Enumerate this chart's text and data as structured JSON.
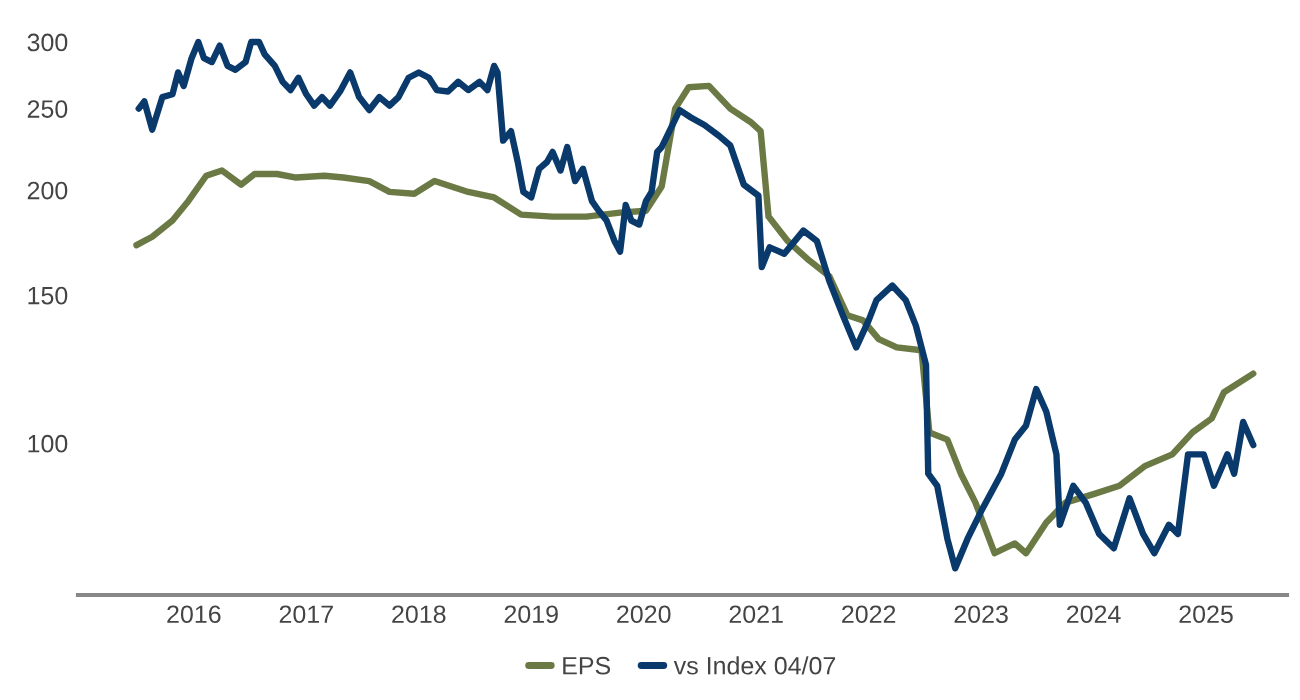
{
  "chart_data": {
    "type": "line",
    "log": true,
    "grid": false,
    "legend": "bottom",
    "xlim": [
      2014.97,
      2025.72
    ],
    "xticks": [
      {
        "value": 2016,
        "label": "2016"
      },
      {
        "value": 2017,
        "label": "2017"
      },
      {
        "value": 2018,
        "label": "2018"
      },
      {
        "value": 2019,
        "label": "2019"
      },
      {
        "value": 2020,
        "label": "2020"
      },
      {
        "value": 2021,
        "label": "2021"
      },
      {
        "value": 2022,
        "label": "2022"
      },
      {
        "value": 2023,
        "label": "2023"
      },
      {
        "value": 2024,
        "label": "2024"
      },
      {
        "value": 2025,
        "label": "2025"
      }
    ],
    "ylim": [
      66,
      300
    ],
    "yticks": [
      100,
      150,
      200,
      250,
      300
    ],
    "series": [
      {
        "name": "EPS",
        "color": "#6b7a45",
        "x": [
          2015.49,
          2015.63,
          2015.81,
          2015.95,
          2016.11,
          2016.25,
          2016.42,
          2016.54,
          2016.74,
          2016.91,
          2017.16,
          2017.33,
          2017.56,
          2017.74,
          2017.96,
          2018.14,
          2018.44,
          2018.67,
          2018.91,
          2019.19,
          2019.49,
          2019.79,
          2020.02,
          2020.16,
          2020.28,
          2020.4,
          2020.58,
          2020.77,
          2020.95,
          2021.04,
          2021.11,
          2021.28,
          2021.47,
          2021.65,
          2021.81,
          2021.95,
          2022.09,
          2022.25,
          2022.47,
          2022.54,
          2022.7,
          2022.82,
          2022.95,
          2023.12,
          2023.3,
          2023.4,
          2023.58,
          2023.75,
          2024.0,
          2024.23,
          2024.46,
          2024.7,
          2024.88,
          2025.05,
          2025.16,
          2025.42
        ],
        "values": [
          172,
          176,
          184,
          194,
          208,
          211,
          203,
          209,
          209,
          207,
          208,
          207,
          205,
          199,
          198,
          205,
          199,
          196,
          187,
          186,
          186,
          188,
          189,
          202,
          250,
          265,
          266,
          250,
          241,
          235,
          186,
          174,
          165,
          158,
          142,
          140,
          133,
          130,
          129,
          103,
          101,
          92,
          85,
          74,
          76,
          74,
          80.5,
          85,
          87,
          89,
          94,
          97,
          103,
          107,
          115,
          121
        ]
      },
      {
        "name": "vs Index 04/07",
        "color": "#0a3a6b",
        "x": [
          2015.51,
          2015.56,
          2015.63,
          2015.72,
          2015.81,
          2015.86,
          2015.91,
          2015.98,
          2016.04,
          2016.09,
          2016.16,
          2016.23,
          2016.3,
          2016.37,
          2016.46,
          2016.51,
          2016.58,
          2016.63,
          2016.72,
          2016.79,
          2016.86,
          2016.93,
          2017.0,
          2017.07,
          2017.14,
          2017.21,
          2017.3,
          2017.39,
          2017.47,
          2017.56,
          2017.65,
          2017.74,
          2017.82,
          2017.91,
          2018.0,
          2018.09,
          2018.16,
          2018.26,
          2018.35,
          2018.44,
          2018.54,
          2018.61,
          2018.67,
          2018.7,
          2018.75,
          2018.82,
          2018.88,
          2018.93,
          2019.0,
          2019.07,
          2019.14,
          2019.19,
          2019.26,
          2019.32,
          2019.39,
          2019.46,
          2019.54,
          2019.6,
          2019.67,
          2019.74,
          2019.79,
          2019.84,
          2019.89,
          2019.96,
          2020.02,
          2020.07,
          2020.12,
          2020.16,
          2020.32,
          2020.42,
          2020.54,
          2020.67,
          2020.77,
          2020.89,
          2021.02,
          2021.05,
          2021.12,
          2021.25,
          2021.42,
          2021.54,
          2021.65,
          2021.77,
          2021.89,
          2022.0,
          2022.07,
          2022.21,
          2022.33,
          2022.42,
          2022.51,
          2022.53,
          2022.61,
          2022.7,
          2022.77,
          2022.88,
          2023.0,
          2023.18,
          2023.3,
          2023.4,
          2023.49,
          2023.58,
          2023.67,
          2023.7,
          2023.82,
          2023.93,
          2024.05,
          2024.18,
          2024.32,
          2024.44,
          2024.54,
          2024.67,
          2024.75,
          2024.84,
          2024.98,
          2025.07,
          2025.19,
          2025.25,
          2025.33,
          2025.42
        ],
        "values": [
          250,
          255,
          236,
          258,
          260,
          276,
          266,
          287,
          300,
          287,
          284,
          297,
          281,
          278,
          284,
          300,
          300,
          290,
          281,
          269,
          263,
          272,
          260,
          252,
          258,
          252,
          262,
          276,
          258,
          249,
          258,
          252,
          258,
          272,
          276,
          272,
          263,
          262,
          269,
          263,
          269,
          263,
          281,
          276,
          229,
          235,
          216,
          199,
          196,
          212,
          216,
          222,
          211,
          225,
          205,
          212,
          194,
          189,
          184,
          174,
          169,
          192,
          184,
          182,
          194,
          199,
          222,
          225,
          249,
          244,
          239,
          232,
          226,
          203,
          197,
          162,
          171,
          168,
          179,
          174,
          156,
          142,
          130,
          140,
          148,
          154,
          148,
          138,
          124,
          92,
          89,
          77,
          71,
          77,
          83,
          92,
          101,
          105,
          116,
          109,
          97,
          80,
          89,
          85,
          78,
          75,
          86,
          78,
          74,
          80,
          78,
          97,
          97,
          89,
          97,
          92,
          106,
          99.5
        ]
      }
    ]
  }
}
